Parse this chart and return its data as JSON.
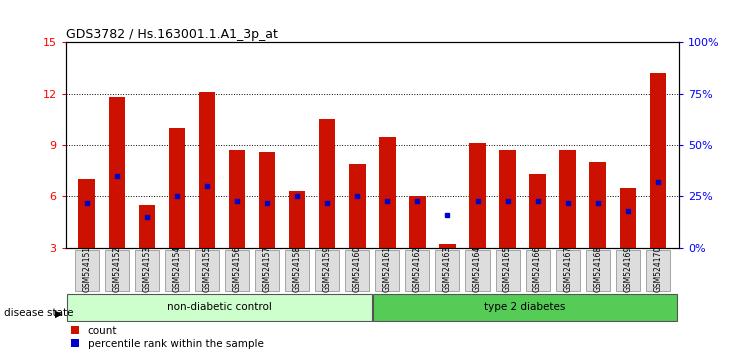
{
  "title": "GDS3782 / Hs.163001.1.A1_3p_at",
  "samples": [
    "GSM524151",
    "GSM524152",
    "GSM524153",
    "GSM524154",
    "GSM524155",
    "GSM524156",
    "GSM524157",
    "GSM524158",
    "GSM524159",
    "GSM524160",
    "GSM524161",
    "GSM524162",
    "GSM524163",
    "GSM524164",
    "GSM524165",
    "GSM524166",
    "GSM524167",
    "GSM524168",
    "GSM524169",
    "GSM524170"
  ],
  "counts": [
    7.0,
    11.8,
    5.5,
    10.0,
    12.1,
    8.7,
    8.6,
    6.3,
    10.5,
    7.9,
    9.5,
    6.0,
    3.2,
    9.1,
    8.7,
    7.3,
    8.7,
    8.0,
    6.5,
    13.2
  ],
  "percentile_ranks": [
    22,
    35,
    15,
    25,
    30,
    23,
    22,
    25,
    22,
    25,
    23,
    23,
    16,
    23,
    23,
    23,
    22,
    22,
    18,
    32
  ],
  "group_split": 10,
  "group1_label": "non-diabetic control",
  "group2_label": "type 2 diabetes",
  "group1_color": "#ccffcc",
  "group2_color": "#55cc55",
  "bar_color": "#cc1100",
  "marker_color": "#0000cc",
  "ylim_left": [
    3,
    15
  ],
  "yticks_left": [
    3,
    6,
    9,
    12,
    15
  ],
  "ylim_right": [
    0,
    100
  ],
  "yticks_right": [
    0,
    25,
    50,
    75,
    100
  ],
  "ytick_labels_right": [
    "0%",
    "25%",
    "50%",
    "75%",
    "100%"
  ],
  "legend_count_label": "count",
  "legend_pct_label": "percentile rank within the sample",
  "disease_state_label": "disease state",
  "background_color": "#ffffff",
  "bar_width": 0.55,
  "tick_bg_color": "#dddddd"
}
